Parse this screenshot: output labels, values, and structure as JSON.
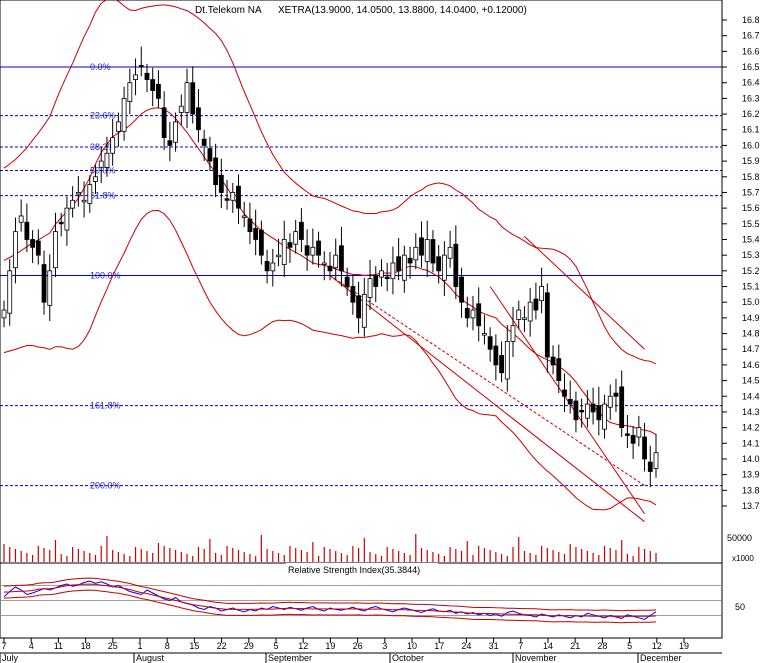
{
  "title": "Dt.Telekom NA",
  "quote": "XETRA(13.9000, 14.0500, 13.8800, 14.0400, +0.12000)",
  "rsi_title": "Relative Strength Index(35.3844)",
  "volume_label": "50000",
  "volume_unit": "x1000",
  "rsi_tick": "50",
  "colors": {
    "candle": "#000000",
    "bands": "#cc0000",
    "fib": "#0000cc",
    "rsi": "#0000ff",
    "grid": "#7f7f7f"
  },
  "chart_data": {
    "type": "candlestick",
    "ylim": [
      13.6,
      16.9
    ],
    "yticks": [
      "16.8",
      "16.7",
      "16.6",
      "16.5",
      "16.4",
      "16.3",
      "16.2",
      "16.1",
      "16.0",
      "15.9",
      "15.8",
      "15.7",
      "15.6",
      "15.5",
      "15.4",
      "15.3",
      "15.2",
      "15.1",
      "15.0",
      "14.9",
      "14.8",
      "14.7",
      "14.6",
      "14.5",
      "14.4",
      "14.3",
      "14.2",
      "14.1",
      "14.0",
      "13.9",
      "13.8",
      "13.7"
    ],
    "xticks": [
      "7",
      "4",
      "11",
      "18",
      "25",
      "1",
      "8",
      "15",
      "22",
      "29",
      "5",
      "12",
      "19",
      "26",
      "3",
      "10",
      "17",
      "24",
      "31",
      "7",
      "14",
      "21",
      "28",
      "5",
      "12",
      "19"
    ],
    "months": [
      "July",
      "August",
      "September",
      "October",
      "November",
      "December"
    ],
    "fib_levels": [
      {
        "label": "0.0%",
        "value": 16.5
      },
      {
        "label": "23.6%",
        "value": 16.19
      },
      {
        "label": "38.2%",
        "value": 15.99
      },
      {
        "label": "50.0%",
        "value": 15.84
      },
      {
        "label": "61.8%",
        "value": 15.68
      },
      {
        "label": "100.0%",
        "value": 15.17
      },
      {
        "label": "161.8%",
        "value": 14.34
      },
      {
        "label": "200.0%",
        "value": 13.83
      }
    ],
    "closes": [
      14.95,
      15.2,
      15.45,
      15.55,
      15.4,
      15.35,
      15.3,
      15.0,
      15.2,
      15.45,
      15.5,
      15.6,
      15.65,
      15.7,
      15.65,
      15.75,
      15.8,
      15.9,
      15.95,
      16.05,
      16.15,
      16.3,
      16.4,
      16.45,
      16.5,
      16.42,
      16.35,
      16.3,
      16.05,
      16.0,
      16.15,
      16.25,
      16.4,
      16.2,
      16.1,
      16.0,
      15.9,
      15.75,
      15.7,
      15.65,
      15.7,
      15.6,
      15.55,
      15.45,
      15.4,
      15.3,
      15.2,
      15.25,
      15.3,
      15.4,
      15.35,
      15.45,
      15.4,
      15.3,
      15.35,
      15.3,
      15.25,
      15.2,
      15.3,
      15.2,
      15.1,
      15.0,
      14.9,
      15.05,
      15.15,
      15.1,
      15.2,
      15.15,
      15.25,
      15.2,
      15.3,
      15.25,
      15.35,
      15.3,
      15.4,
      15.25,
      15.2,
      15.3,
      15.35,
      15.1,
      15.0,
      14.9,
      14.95,
      14.85,
      14.8,
      14.7,
      14.6,
      14.55,
      14.75,
      14.85,
      14.95,
      14.9,
      15.0,
      14.95,
      15.1,
      14.65,
      14.6,
      14.5,
      14.4,
      14.35,
      14.25,
      14.3,
      14.35,
      14.3,
      14.25,
      14.35,
      14.4,
      14.4,
      14.2,
      14.15,
      14.1,
      14.2,
      14.0,
      13.92,
      14.04
    ],
    "rsi_ylim": [
      0,
      100
    ],
    "rsi": [
      55,
      62,
      68,
      64,
      58,
      60,
      63,
      66,
      64,
      67,
      70,
      72,
      69,
      71,
      74,
      76,
      73,
      75,
      72,
      68,
      70,
      66,
      62,
      60,
      58,
      64,
      60,
      56,
      52,
      50,
      54,
      48,
      46,
      44,
      40,
      38,
      42,
      40,
      36,
      38,
      40,
      37,
      35,
      38,
      36,
      40,
      38,
      42,
      40,
      38,
      41,
      39,
      37,
      40,
      42,
      38,
      36,
      40,
      38,
      37,
      39,
      41,
      38,
      36,
      40,
      42,
      39,
      37,
      35,
      38,
      40,
      38,
      36,
      34,
      37,
      39,
      36,
      35,
      37,
      33,
      35,
      32,
      34,
      31,
      33,
      30,
      32,
      29,
      34,
      36,
      33,
      31,
      30,
      28,
      32,
      30,
      28,
      31,
      29,
      27,
      30,
      28,
      33,
      31,
      29,
      27,
      30,
      28,
      26,
      31,
      29,
      27,
      25,
      30,
      35
    ]
  }
}
